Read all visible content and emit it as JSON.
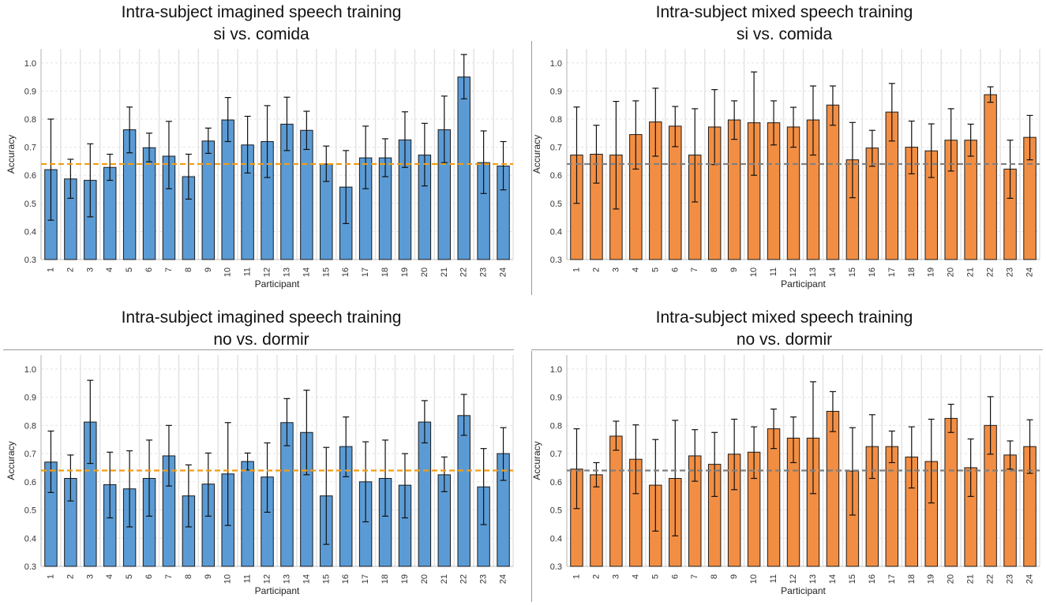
{
  "figure": {
    "threshold": 0.64,
    "colors": {
      "imagined_bar": "#5B9BD5",
      "mixed_bar": "#F28E43",
      "imagined_threshold": "#F39C12",
      "mixed_threshold": "#7F7F7F",
      "grid": "#E3E3E3",
      "bar_edge": "#1a1a1a"
    }
  },
  "chart_data": [
    {
      "type": "bar",
      "title": "Intra-subject imagined speech training",
      "subtitle": "si vs. comida",
      "xlabel": "Participant",
      "ylabel": "Accuracy",
      "ylim": [
        0.3,
        1.05
      ],
      "yticks": [
        "0.3",
        "0.4",
        "0.5",
        "0.6",
        "0.7",
        "0.8",
        "0.9",
        "1.0"
      ],
      "categories": [
        "1",
        "2",
        "3",
        "4",
        "5",
        "6",
        "7",
        "8",
        "9",
        "10",
        "11",
        "12",
        "13",
        "14",
        "15",
        "16",
        "17",
        "18",
        "19",
        "20",
        "21",
        "22",
        "23",
        "24"
      ],
      "values": [
        0.62,
        0.587,
        0.582,
        0.628,
        0.762,
        0.698,
        0.668,
        0.595,
        0.722,
        0.797,
        0.708,
        0.72,
        0.782,
        0.76,
        0.64,
        0.558,
        0.662,
        0.662,
        0.726,
        0.672,
        0.762,
        0.95,
        0.645,
        0.633
      ],
      "err_low": [
        0.44,
        0.518,
        0.452,
        0.582,
        0.68,
        0.648,
        0.552,
        0.515,
        0.678,
        0.72,
        0.608,
        0.592,
        0.688,
        0.692,
        0.578,
        0.428,
        0.552,
        0.595,
        0.628,
        0.562,
        0.645,
        0.872,
        0.535,
        0.548
      ],
      "err_high": [
        0.8,
        0.657,
        0.712,
        0.675,
        0.843,
        0.75,
        0.792,
        0.675,
        0.768,
        0.877,
        0.81,
        0.848,
        0.878,
        0.828,
        0.704,
        0.688,
        0.775,
        0.73,
        0.826,
        0.785,
        0.882,
        1.03,
        0.758,
        0.72
      ],
      "threshold": 0.64,
      "bar_color": "#5B9BD5",
      "threshold_color": "#F39C12",
      "grid": true
    },
    {
      "type": "bar",
      "title": "Intra-subject mixed speech training",
      "subtitle": "si vs. comida",
      "xlabel": "Participant",
      "ylabel": "Accuracy",
      "ylim": [
        0.3,
        1.05
      ],
      "yticks": [
        "0.3",
        "0.4",
        "0.5",
        "0.6",
        "0.7",
        "0.8",
        "0.9",
        "1.0"
      ],
      "categories": [
        "1",
        "2",
        "3",
        "4",
        "5",
        "6",
        "7",
        "8",
        "9",
        "10",
        "11",
        "12",
        "13",
        "14",
        "15",
        "16",
        "17",
        "18",
        "19",
        "20",
        "21",
        "22",
        "23",
        "24"
      ],
      "values": [
        0.672,
        0.675,
        0.672,
        0.745,
        0.79,
        0.775,
        0.672,
        0.772,
        0.797,
        0.787,
        0.787,
        0.772,
        0.797,
        0.85,
        0.655,
        0.697,
        0.825,
        0.7,
        0.687,
        0.725,
        0.725,
        0.887,
        0.622,
        0.735
      ],
      "err_low": [
        0.5,
        0.572,
        0.48,
        0.622,
        0.668,
        0.702,
        0.505,
        0.638,
        0.728,
        0.6,
        0.708,
        0.7,
        0.672,
        0.778,
        0.52,
        0.632,
        0.722,
        0.605,
        0.592,
        0.615,
        0.668,
        0.86,
        0.518,
        0.655
      ],
      "err_high": [
        0.843,
        0.778,
        0.863,
        0.865,
        0.91,
        0.845,
        0.837,
        0.905,
        0.865,
        0.968,
        0.865,
        0.842,
        0.918,
        0.918,
        0.788,
        0.76,
        0.927,
        0.793,
        0.783,
        0.837,
        0.782,
        0.915,
        0.725,
        0.813
      ],
      "threshold": 0.64,
      "bar_color": "#F28E43",
      "threshold_color": "#7F7F7F",
      "grid": true
    },
    {
      "type": "bar",
      "title": "Intra-subject imagined speech training",
      "subtitle": "no vs. dormir",
      "xlabel": "Participant",
      "ylabel": "Accuracy",
      "ylim": [
        0.3,
        1.05
      ],
      "yticks": [
        "0.3",
        "0.4",
        "0.5",
        "0.6",
        "0.7",
        "0.8",
        "0.9",
        "1.0"
      ],
      "categories": [
        "1",
        "2",
        "3",
        "4",
        "5",
        "6",
        "7",
        "8",
        "9",
        "10",
        "11",
        "12",
        "13",
        "14",
        "15",
        "16",
        "17",
        "18",
        "19",
        "20",
        "21",
        "22",
        "23",
        "24"
      ],
      "values": [
        0.67,
        0.612,
        0.812,
        0.59,
        0.575,
        0.612,
        0.692,
        0.55,
        0.592,
        0.628,
        0.672,
        0.617,
        0.81,
        0.775,
        0.55,
        0.725,
        0.6,
        0.612,
        0.588,
        0.812,
        0.625,
        0.835,
        0.582,
        0.7
      ],
      "err_low": [
        0.562,
        0.532,
        0.665,
        0.472,
        0.44,
        0.478,
        0.585,
        0.44,
        0.478,
        0.445,
        0.642,
        0.492,
        0.728,
        0.625,
        0.378,
        0.618,
        0.458,
        0.478,
        0.472,
        0.738,
        0.565,
        0.765,
        0.448,
        0.605
      ],
      "err_high": [
        0.78,
        0.695,
        0.96,
        0.705,
        0.71,
        0.748,
        0.8,
        0.66,
        0.702,
        0.81,
        0.702,
        0.738,
        0.895,
        0.925,
        0.722,
        0.83,
        0.742,
        0.748,
        0.7,
        0.888,
        0.688,
        0.91,
        0.718,
        0.792
      ],
      "threshold": 0.64,
      "bar_color": "#5B9BD5",
      "threshold_color": "#F39C12",
      "grid": true
    },
    {
      "type": "bar",
      "title": "Intra-subject mixed speech training",
      "subtitle": "no vs. dormir",
      "xlabel": "Participant",
      "ylabel": "Accuracy",
      "ylim": [
        0.3,
        1.05
      ],
      "yticks": [
        "0.3",
        "0.4",
        "0.5",
        "0.6",
        "0.7",
        "0.8",
        "0.9",
        "1.0"
      ],
      "categories": [
        "1",
        "2",
        "3",
        "4",
        "5",
        "6",
        "7",
        "8",
        "9",
        "10",
        "11",
        "12",
        "13",
        "14",
        "15",
        "16",
        "17",
        "18",
        "19",
        "20",
        "21",
        "22",
        "23",
        "24"
      ],
      "values": [
        0.645,
        0.625,
        0.762,
        0.68,
        0.588,
        0.612,
        0.692,
        0.662,
        0.698,
        0.705,
        0.788,
        0.755,
        0.755,
        0.85,
        0.638,
        0.725,
        0.725,
        0.688,
        0.672,
        0.825,
        0.65,
        0.8,
        0.695,
        0.725
      ],
      "err_low": [
        0.505,
        0.582,
        0.712,
        0.558,
        0.425,
        0.408,
        0.602,
        0.548,
        0.572,
        0.612,
        0.718,
        0.668,
        0.558,
        0.778,
        0.482,
        0.612,
        0.668,
        0.578,
        0.525,
        0.775,
        0.548,
        0.698,
        0.645,
        0.63
      ],
      "err_high": [
        0.788,
        0.668,
        0.815,
        0.802,
        0.75,
        0.818,
        0.785,
        0.775,
        0.822,
        0.795,
        0.858,
        0.83,
        0.955,
        0.92,
        0.792,
        0.838,
        0.78,
        0.795,
        0.822,
        0.875,
        0.752,
        0.902,
        0.745,
        0.82
      ],
      "threshold": 0.64,
      "bar_color": "#F28E43",
      "threshold_color": "#7F7F7F",
      "grid": true
    }
  ]
}
